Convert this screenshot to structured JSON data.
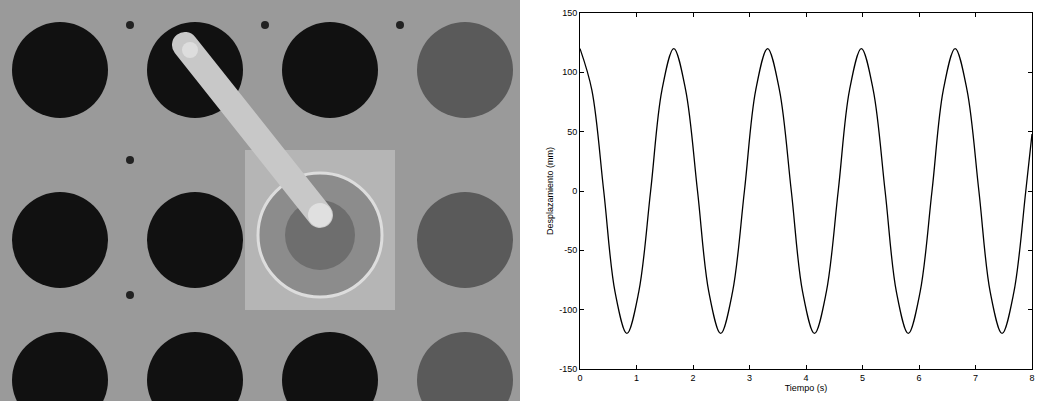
{
  "chart_data": {
    "type": "line",
    "x_label": "Tiempo (s)",
    "y_label": "Desplazamiento (mm)",
    "x": [
      0.0,
      0.21,
      0.42,
      0.62,
      0.83,
      1.04,
      1.25,
      1.45,
      1.66,
      1.87,
      2.08,
      2.28,
      2.49,
      2.7,
      2.91,
      3.11,
      3.32,
      3.53,
      3.74,
      3.94,
      4.15,
      4.36,
      4.57,
      4.77,
      4.98,
      5.19,
      5.4,
      5.6,
      5.81,
      6.02,
      6.23,
      6.43,
      6.64,
      6.85,
      7.06,
      7.26,
      7.47,
      7.68,
      7.89,
      8.0
    ],
    "values": [
      120,
      85,
      0,
      -85,
      -120,
      -85,
      0,
      85,
      120,
      85,
      0,
      -85,
      -120,
      -85,
      0,
      85,
      120,
      85,
      0,
      -85,
      -120,
      -85,
      0,
      85,
      120,
      85,
      0,
      -85,
      -120,
      -85,
      0,
      85,
      120,
      85,
      0,
      -85,
      -120,
      -85,
      0,
      48
    ],
    "color": "#000000",
    "line_style": "solid",
    "xlim": [
      0,
      8
    ],
    "xticks": [
      0,
      1,
      2,
      3,
      4,
      5,
      6,
      7,
      8
    ],
    "ylim": [
      -150,
      150
    ],
    "yticks": [
      -150,
      -100,
      -50,
      0,
      50,
      100,
      150
    ],
    "grid": false
  }
}
